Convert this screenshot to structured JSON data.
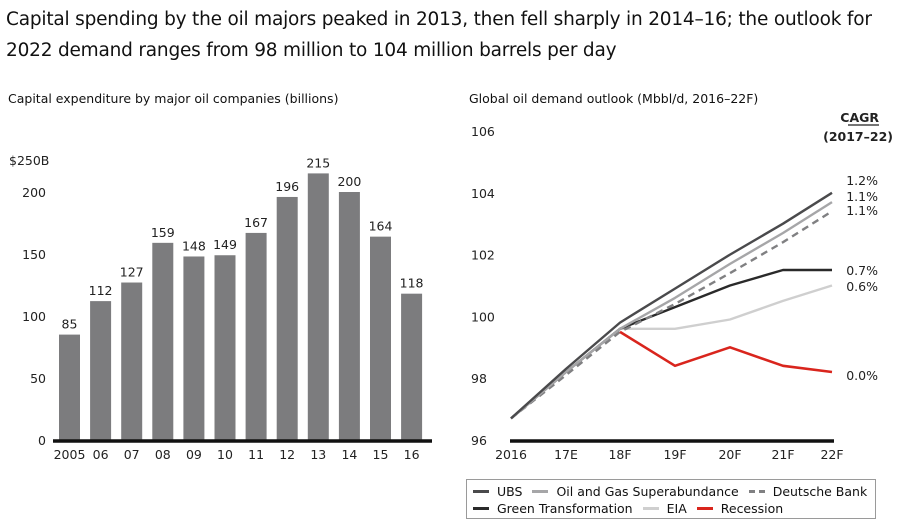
{
  "title": "Capital spending by the oil majors peaked in 2013, then fell sharply in 2014–16; the outlook for 2022 demand ranges from 98 million to 104 million barrels per day",
  "chart_data": [
    {
      "type": "bar",
      "title": "Capital expenditure by major oil companies (billions)",
      "xlabel": "",
      "ylabel": "",
      "ylim": [
        0,
        250
      ],
      "yticks": [
        {
          "value": 0,
          "label": "0"
        },
        {
          "value": 50,
          "label": "50"
        },
        {
          "value": 100,
          "label": "100"
        },
        {
          "value": 150,
          "label": "150"
        },
        {
          "value": 200,
          "label": "200"
        },
        {
          "value": 250,
          "label": "$250B"
        }
      ],
      "categories": [
        "2005",
        "06",
        "07",
        "08",
        "09",
        "10",
        "11",
        "12",
        "13",
        "14",
        "15",
        "16"
      ],
      "values": [
        85,
        112,
        127,
        159,
        148,
        149,
        167,
        196,
        215,
        200,
        164,
        118
      ],
      "bar_color": "#7c7c7e",
      "grid": false
    },
    {
      "type": "line",
      "title": "Global oil demand outlook (Mbbl/d, 2016–22F)",
      "ylim": [
        96,
        106
      ],
      "yticks": [
        96,
        98,
        100,
        102,
        104,
        106
      ],
      "x": [
        "2016",
        "17E",
        "18F",
        "19F",
        "20F",
        "21F",
        "22F"
      ],
      "annotation_header": [
        "CAGR",
        "(2017–22)"
      ],
      "series": [
        {
          "name": "UBS",
          "color": "#4a4a4c",
          "dash": false,
          "values": [
            96.7,
            98.3,
            99.8,
            100.9,
            102.0,
            103.0,
            104.0
          ],
          "cagr": "1.2%"
        },
        {
          "name": "Oil and Gas Superabundance",
          "color": "#a6a6a8",
          "dash": false,
          "values": [
            96.7,
            98.2,
            99.6,
            100.6,
            101.7,
            102.7,
            103.7
          ],
          "cagr": "1.1%"
        },
        {
          "name": "Deutsche Bank",
          "color": "#808082",
          "dash": true,
          "values": [
            96.7,
            98.1,
            99.5,
            100.4,
            101.4,
            102.4,
            103.4
          ],
          "cagr": "1.1%"
        },
        {
          "name": "Green Transformation",
          "color": "#2a2a2a",
          "dash": false,
          "values": [
            96.7,
            98.2,
            99.6,
            100.3,
            101.0,
            101.5,
            101.5
          ],
          "cagr": "0.7%"
        },
        {
          "name": "EIA",
          "color": "#cfcfcf",
          "dash": false,
          "values": [
            96.7,
            98.2,
            99.6,
            99.6,
            99.9,
            100.5,
            101.0
          ],
          "cagr": "0.6%"
        },
        {
          "name": "Recession",
          "color": "#d9251d",
          "dash": false,
          "values": [
            null,
            null,
            99.5,
            98.4,
            99.0,
            98.4,
            98.2
          ],
          "cagr": "0.0%"
        }
      ],
      "legend": "bottom",
      "grid": false
    }
  ]
}
